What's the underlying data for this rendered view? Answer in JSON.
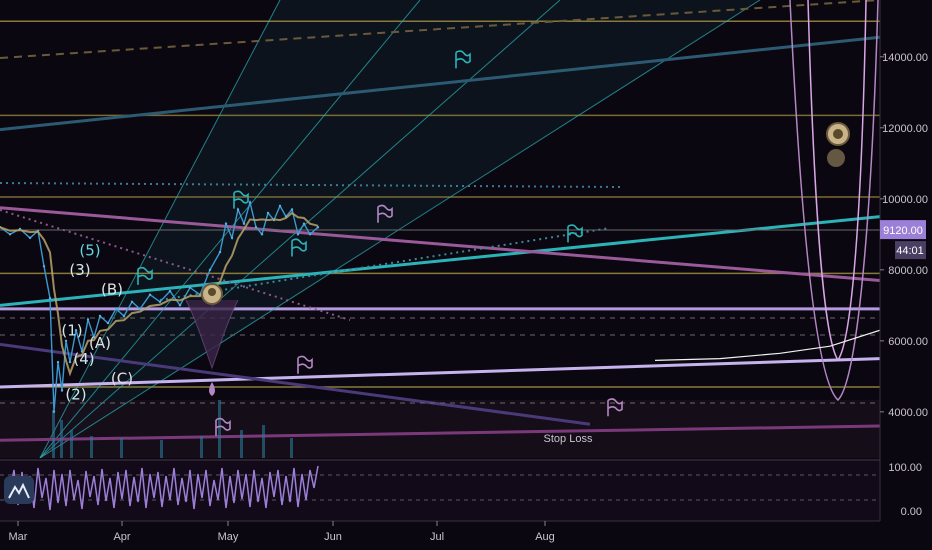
{
  "chart_data": {
    "type": "line",
    "y_axis": {
      "ticks": [
        4000,
        6000,
        8000,
        10000,
        12000,
        14000
      ],
      "tick_labels": [
        "4000.00",
        "6000.00",
        "8000.00",
        "10000.00",
        "12000.00",
        "14000.00"
      ],
      "range": [
        2700,
        15600
      ]
    },
    "x_axis": {
      "tick_labels": [
        "Mar",
        "Apr",
        "May",
        "Jun",
        "Jul",
        "Aug"
      ]
    },
    "price_badge": {
      "price": 9120,
      "label": "9120.00",
      "countdown": "44:01",
      "color": "#9c7fd6"
    },
    "oscillator": {
      "tick_labels": [
        "100.00",
        "0.00"
      ],
      "range": [
        0,
        100
      ]
    },
    "price_series": [
      {
        "x": 0,
        "y": 9200
      },
      {
        "x": 10,
        "y": 9000
      },
      {
        "x": 20,
        "y": 9150
      },
      {
        "x": 30,
        "y": 8900
      },
      {
        "x": 38,
        "y": 9100
      },
      {
        "x": 44,
        "y": 8100
      },
      {
        "x": 50,
        "y": 7200
      },
      {
        "x": 54,
        "y": 4000
      },
      {
        "x": 58,
        "y": 5400
      },
      {
        "x": 62,
        "y": 4600
      },
      {
        "x": 66,
        "y": 6000
      },
      {
        "x": 70,
        "y": 5400
      },
      {
        "x": 76,
        "y": 6300
      },
      {
        "x": 82,
        "y": 5700
      },
      {
        "x": 88,
        "y": 6600
      },
      {
        "x": 94,
        "y": 6100
      },
      {
        "x": 100,
        "y": 6700
      },
      {
        "x": 108,
        "y": 6500
      },
      {
        "x": 116,
        "y": 6900
      },
      {
        "x": 124,
        "y": 6700
      },
      {
        "x": 132,
        "y": 7100
      },
      {
        "x": 140,
        "y": 6900
      },
      {
        "x": 150,
        "y": 7300
      },
      {
        "x": 160,
        "y": 7100
      },
      {
        "x": 170,
        "y": 7400
      },
      {
        "x": 180,
        "y": 7000
      },
      {
        "x": 190,
        "y": 7500
      },
      {
        "x": 200,
        "y": 7300
      },
      {
        "x": 210,
        "y": 8000
      },
      {
        "x": 220,
        "y": 8500
      },
      {
        "x": 226,
        "y": 9300
      },
      {
        "x": 232,
        "y": 8900
      },
      {
        "x": 238,
        "y": 9700
      },
      {
        "x": 244,
        "y": 9300
      },
      {
        "x": 250,
        "y": 9900
      },
      {
        "x": 256,
        "y": 9200
      },
      {
        "x": 262,
        "y": 9000
      },
      {
        "x": 268,
        "y": 9600
      },
      {
        "x": 274,
        "y": 9400
      },
      {
        "x": 280,
        "y": 9800
      },
      {
        "x": 286,
        "y": 9500
      },
      {
        "x": 292,
        "y": 9700
      },
      {
        "x": 298,
        "y": 9000
      },
      {
        "x": 304,
        "y": 9300
      },
      {
        "x": 310,
        "y": 9000
      },
      {
        "x": 318,
        "y": 9200
      }
    ],
    "horizontal_levels": [
      {
        "price": 15000,
        "color": "#8a7a3a"
      },
      {
        "price": 12350,
        "color": "#7a6a36"
      },
      {
        "price": 10050,
        "color": "#7a6a36"
      },
      {
        "price": 7900,
        "color": "#8a7a3a"
      },
      {
        "price": 6900,
        "color": "#b49be0"
      },
      {
        "price": 4700,
        "color": "#8a7a3a"
      }
    ],
    "trend_lines": [
      {
        "x1": 0,
        "y1": 7000,
        "x2": 880,
        "y2": 9500,
        "color": "#2bb3b8"
      },
      {
        "x1": 0,
        "y1": 9750,
        "x2": 880,
        "y2": 7700,
        "color": "#9a5a9a"
      },
      {
        "x1": 0,
        "y1": 4700,
        "x2": 880,
        "y2": 5500,
        "color": "#c6b3ee"
      },
      {
        "x1": 0,
        "y1": 11950,
        "x2": 880,
        "y2": 14550,
        "color": "#2c5a73"
      },
      {
        "x1": 0,
        "y1": 3200,
        "x2": 880,
        "y2": 3600,
        "color": "#7a3a7a"
      },
      {
        "x1": 0,
        "y1": 5900,
        "x2": 590,
        "y2": 3650,
        "color": "#4a3a7a"
      }
    ],
    "fan_origins": [
      {
        "x": 40,
        "y": 2700,
        "x2": 280,
        "y2": 15600,
        "color": "#2bb3b8"
      },
      {
        "x": 40,
        "y": 2700,
        "x2": 420,
        "y2": 15600,
        "color": "#2bb3b8"
      },
      {
        "x": 40,
        "y": 2700,
        "x2": 560,
        "y2": 15600,
        "color": "#2bb3b8"
      },
      {
        "x": 40,
        "y": 2700,
        "x2": 760,
        "y2": 15600,
        "color": "#2bb3b8"
      }
    ],
    "forecast_curve": [
      {
        "x": 655,
        "y": 5450
      },
      {
        "x": 720,
        "y": 5500
      },
      {
        "x": 780,
        "y": 5650
      },
      {
        "x": 830,
        "y": 5850
      },
      {
        "x": 880,
        "y": 6300
      }
    ],
    "wave_labels": [
      {
        "text": "(5)",
        "x": 90,
        "y": 8400,
        "color": "#62d6e0"
      },
      {
        "text": "(3)",
        "x": 80,
        "y": 7850,
        "color": "#cfe9ea"
      },
      {
        "text": "(B)",
        "x": 112,
        "y": 7300,
        "color": "#e0e0e0"
      },
      {
        "text": "(1)",
        "x": 72,
        "y": 6150,
        "color": "#cfe9ea"
      },
      {
        "text": "(A)",
        "x": 100,
        "y": 5800,
        "color": "#e0e0e0"
      },
      {
        "text": "(4)",
        "x": 84,
        "y": 5350,
        "color": "#cfe9ea"
      },
      {
        "text": "(C)",
        "x": 122,
        "y": 4800,
        "color": "#e0e0e0"
      },
      {
        "text": "(2)",
        "x": 76,
        "y": 4350,
        "color": "#cfe9ea"
      }
    ],
    "flags": [
      {
        "x": 462,
        "y": 13900,
        "color": "#2bb3b8"
      },
      {
        "x": 240,
        "y": 9950,
        "color": "#2bb3b8"
      },
      {
        "x": 384,
        "y": 9550,
        "color": "#b487c4"
      },
      {
        "x": 574,
        "y": 9000,
        "color": "#2bb3b8"
      },
      {
        "x": 298,
        "y": 8600,
        "color": "#2bb3b8"
      },
      {
        "x": 144,
        "y": 7800,
        "color": "#2bb3b8"
      },
      {
        "x": 304,
        "y": 5300,
        "color": "#b487c4"
      },
      {
        "x": 614,
        "y": 4100,
        "color": "#b487c4"
      },
      {
        "x": 222,
        "y": 3550,
        "color": "#b487c4"
      }
    ],
    "annotations": [
      {
        "text": "Stop Loss",
        "x": 568,
        "y": 3150,
        "color": "#d08ad8"
      }
    ]
  }
}
